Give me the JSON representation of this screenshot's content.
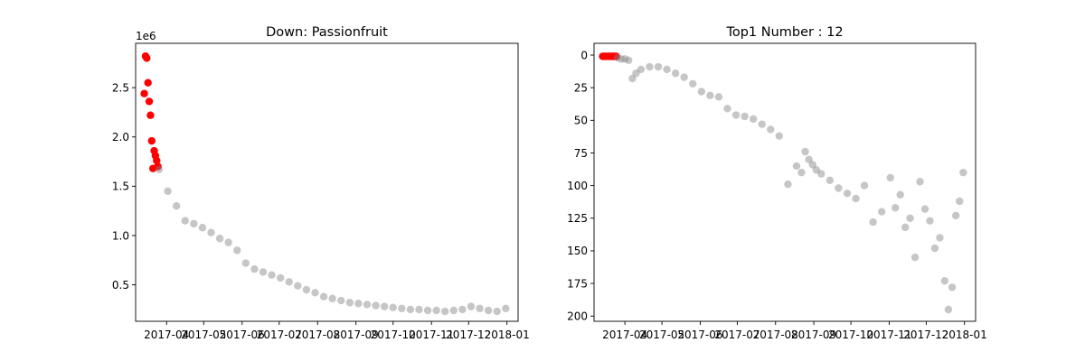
{
  "colors": {
    "background": "#ffffff",
    "highlight": "#ff0000",
    "points": "#808080"
  },
  "chart_data": [
    {
      "type": "scatter",
      "title": "Down: Passionfruit",
      "xlabel": "",
      "ylabel": "",
      "y_scale_label": "1e6",
      "x_tick_labels": [
        "2017-04",
        "2017-05",
        "2017-06",
        "2017-07",
        "2017-08",
        "2017-09",
        "2017-10",
        "2017-11",
        "2017-12",
        "2018-01"
      ],
      "y_tick_labels": [
        "0.5",
        "1.0",
        "1.5",
        "2.0",
        "2.5"
      ],
      "y_ticks": [
        0.5,
        1.0,
        1.5,
        2.0,
        2.5
      ],
      "xlim": [
        "2017-03-07",
        "2018-01-10"
      ],
      "ylim": [
        0.13,
        2.95
      ],
      "y_inverted": false,
      "grid": false,
      "series": [
        {
          "color": "#ff0000",
          "alpha": 1.0,
          "x": [
            "2017-03-14",
            "2017-03-15",
            "2017-03-16",
            "2017-03-17",
            "2017-03-18",
            "2017-03-19",
            "2017-03-20",
            "2017-03-21",
            "2017-03-22",
            "2017-03-23",
            "2017-03-24",
            "2017-03-25"
          ],
          "y": [
            2.44,
            2.82,
            2.8,
            2.55,
            2.36,
            2.22,
            1.96,
            1.68,
            1.86,
            1.81,
            1.76,
            1.7
          ]
        },
        {
          "color": "#808080",
          "alpha": 0.45,
          "x": [
            "2017-03-26",
            "2017-04-02",
            "2017-04-09",
            "2017-04-16",
            "2017-04-23",
            "2017-04-30",
            "2017-05-07",
            "2017-05-14",
            "2017-05-21",
            "2017-05-28",
            "2017-06-04",
            "2017-06-11",
            "2017-06-18",
            "2017-06-25",
            "2017-07-02",
            "2017-07-09",
            "2017-07-16",
            "2017-07-23",
            "2017-07-30",
            "2017-08-06",
            "2017-08-13",
            "2017-08-20",
            "2017-08-27",
            "2017-09-03",
            "2017-09-10",
            "2017-09-17",
            "2017-09-24",
            "2017-10-01",
            "2017-10-08",
            "2017-10-15",
            "2017-10-22",
            "2017-10-29",
            "2017-11-05",
            "2017-11-12",
            "2017-11-19",
            "2017-11-26",
            "2017-12-03",
            "2017-12-10",
            "2017-12-17",
            "2017-12-24",
            "2017-12-31"
          ],
          "y": [
            1.67,
            1.45,
            1.3,
            1.15,
            1.12,
            1.08,
            1.03,
            0.97,
            0.93,
            0.85,
            0.72,
            0.66,
            0.63,
            0.6,
            0.57,
            0.53,
            0.49,
            0.45,
            0.42,
            0.38,
            0.36,
            0.34,
            0.32,
            0.31,
            0.3,
            0.29,
            0.28,
            0.27,
            0.26,
            0.25,
            0.25,
            0.24,
            0.24,
            0.23,
            0.24,
            0.25,
            0.28,
            0.26,
            0.24,
            0.23,
            0.26
          ]
        }
      ]
    },
    {
      "type": "scatter",
      "title": "Top1 Number : 12",
      "xlabel": "",
      "ylabel": "",
      "x_tick_labels": [
        "2017-04",
        "2017-05",
        "2017-06",
        "2017-07",
        "2017-08",
        "2017-09",
        "2017-10",
        "2017-11",
        "2017-12",
        "2018-01"
      ],
      "y_tick_labels": [
        "0",
        "25",
        "50",
        "75",
        "100",
        "125",
        "150",
        "175",
        "200"
      ],
      "y_ticks": [
        0,
        25,
        50,
        75,
        100,
        125,
        150,
        175,
        200
      ],
      "xlim": [
        "2017-03-07",
        "2018-01-10"
      ],
      "ylim": [
        204,
        -9
      ],
      "y_inverted": true,
      "grid": false,
      "series": [
        {
          "color": "#ff0000",
          "alpha": 1.0,
          "x": [
            "2017-03-14",
            "2017-03-15",
            "2017-03-16",
            "2017-03-17",
            "2017-03-18",
            "2017-03-19",
            "2017-03-20",
            "2017-03-21",
            "2017-03-22",
            "2017-03-23",
            "2017-03-24",
            "2017-03-25"
          ],
          "y": [
            1,
            1,
            1,
            1,
            1,
            1,
            1,
            1,
            1,
            1,
            1,
            1
          ]
        },
        {
          "color": "#808080",
          "alpha": 0.45,
          "x": [
            "2017-03-26",
            "2017-03-29",
            "2017-04-01",
            "2017-04-04",
            "2017-04-07",
            "2017-04-10",
            "2017-04-14",
            "2017-04-21",
            "2017-04-28",
            "2017-05-05",
            "2017-05-12",
            "2017-05-19",
            "2017-05-26",
            "2017-06-02",
            "2017-06-09",
            "2017-06-16",
            "2017-06-23",
            "2017-06-30",
            "2017-07-07",
            "2017-07-14",
            "2017-07-21",
            "2017-07-28",
            "2017-08-04",
            "2017-08-11",
            "2017-08-18",
            "2017-08-22",
            "2017-08-25",
            "2017-08-28",
            "2017-08-31",
            "2017-09-03",
            "2017-09-07",
            "2017-09-14",
            "2017-09-21",
            "2017-09-28",
            "2017-10-05",
            "2017-10-12",
            "2017-10-19",
            "2017-10-26",
            "2017-11-02",
            "2017-11-06",
            "2017-11-10",
            "2017-11-14",
            "2017-11-18",
            "2017-11-22",
            "2017-11-26",
            "2017-11-30",
            "2017-12-04",
            "2017-12-08",
            "2017-12-12",
            "2017-12-16",
            "2017-12-19",
            "2017-12-22",
            "2017-12-25",
            "2017-12-28",
            "2017-12-31"
          ],
          "y": [
            2,
            3,
            3,
            4,
            18,
            14,
            11,
            9,
            9,
            11,
            14,
            17,
            22,
            28,
            31,
            32,
            41,
            46,
            47,
            49,
            53,
            57,
            62,
            99,
            85,
            90,
            74,
            80,
            84,
            88,
            91,
            96,
            102,
            106,
            110,
            100,
            128,
            120,
            94,
            117,
            107,
            132,
            125,
            155,
            97,
            118,
            127,
            148,
            140,
            173,
            195,
            178,
            123,
            112,
            90
          ]
        }
      ]
    }
  ]
}
